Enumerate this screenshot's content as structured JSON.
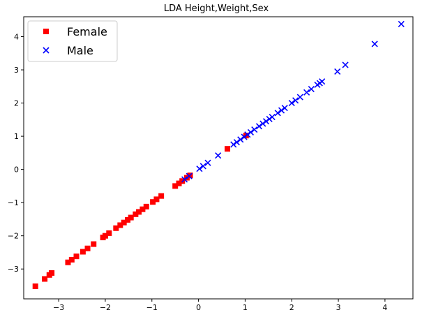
{
  "chart_data": {
    "type": "scatter",
    "title": "LDA Height,Weight,Sex",
    "xlabel": "",
    "ylabel": "",
    "xlim": [
      -3.75,
      4.6
    ],
    "ylim": [
      -3.9,
      4.6
    ],
    "xticks": [
      -3,
      -2,
      -1,
      0,
      1,
      2,
      3,
      4
    ],
    "yticks": [
      -3,
      -2,
      -1,
      0,
      1,
      2,
      3,
      4
    ],
    "xtick_labels": [
      "−3",
      "−2",
      "−1",
      "0",
      "1",
      "2",
      "3",
      "4"
    ],
    "ytick_labels": [
      "−3",
      "−2",
      "−1",
      "0",
      "1",
      "2",
      "3",
      "4"
    ],
    "grid": false,
    "legend": {
      "position": "top-left"
    },
    "series": [
      {
        "name": "Female",
        "marker": "square",
        "color": "#ff0000",
        "points": [
          [
            -3.5,
            -3.52
          ],
          [
            -3.3,
            -3.3
          ],
          [
            -3.2,
            -3.18
          ],
          [
            -3.15,
            -3.12
          ],
          [
            -2.8,
            -2.8
          ],
          [
            -2.72,
            -2.72
          ],
          [
            -2.62,
            -2.62
          ],
          [
            -2.48,
            -2.48
          ],
          [
            -2.38,
            -2.38
          ],
          [
            -2.25,
            -2.25
          ],
          [
            -2.05,
            -2.05
          ],
          [
            -2.0,
            -2.0
          ],
          [
            -1.92,
            -1.92
          ],
          [
            -1.77,
            -1.77
          ],
          [
            -1.68,
            -1.68
          ],
          [
            -1.6,
            -1.6
          ],
          [
            -1.52,
            -1.52
          ],
          [
            -1.45,
            -1.45
          ],
          [
            -1.35,
            -1.35
          ],
          [
            -1.28,
            -1.28
          ],
          [
            -1.2,
            -1.2
          ],
          [
            -1.12,
            -1.12
          ],
          [
            -0.98,
            -0.98
          ],
          [
            -0.9,
            -0.9
          ],
          [
            -0.8,
            -0.8
          ],
          [
            -0.5,
            -0.5
          ],
          [
            -0.42,
            -0.42
          ],
          [
            -0.35,
            -0.35
          ],
          [
            -0.25,
            -0.25
          ],
          [
            -0.18,
            -0.18
          ],
          [
            0.62,
            0.62
          ],
          [
            1.02,
            1.02
          ]
        ]
      },
      {
        "name": "Male",
        "marker": "x",
        "color": "#0000ff",
        "points": [
          [
            -0.3,
            -0.3
          ],
          [
            -0.2,
            -0.2
          ],
          [
            0.02,
            0.02
          ],
          [
            0.1,
            0.1
          ],
          [
            0.2,
            0.2
          ],
          [
            0.42,
            0.42
          ],
          [
            0.75,
            0.75
          ],
          [
            0.82,
            0.82
          ],
          [
            0.9,
            0.9
          ],
          [
            0.98,
            0.98
          ],
          [
            1.05,
            1.05
          ],
          [
            1.12,
            1.12
          ],
          [
            1.2,
            1.2
          ],
          [
            1.3,
            1.3
          ],
          [
            1.38,
            1.38
          ],
          [
            1.45,
            1.45
          ],
          [
            1.52,
            1.52
          ],
          [
            1.58,
            1.58
          ],
          [
            1.7,
            1.7
          ],
          [
            1.78,
            1.78
          ],
          [
            1.85,
            1.85
          ],
          [
            2.0,
            2.0
          ],
          [
            2.08,
            2.08
          ],
          [
            2.18,
            2.18
          ],
          [
            2.32,
            2.32
          ],
          [
            2.42,
            2.42
          ],
          [
            2.55,
            2.55
          ],
          [
            2.6,
            2.6
          ],
          [
            2.65,
            2.65
          ],
          [
            2.98,
            2.95
          ],
          [
            3.15,
            3.15
          ],
          [
            3.78,
            3.78
          ],
          [
            4.35,
            4.38
          ]
        ]
      }
    ]
  }
}
